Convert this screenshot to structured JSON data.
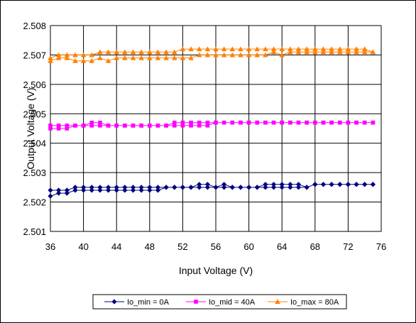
{
  "chart_data": {
    "type": "line",
    "title": "",
    "xlabel": "Input Voltage (V)",
    "ylabel": "Output Voltage (V)",
    "xlim": [
      36,
      76
    ],
    "ylim": [
      2.501,
      2.508
    ],
    "xticks": [
      "36",
      "40",
      "44",
      "48",
      "52",
      "56",
      "60",
      "64",
      "68",
      "72",
      "76"
    ],
    "yticks": [
      "2.501",
      "2.502",
      "2.503",
      "2.504",
      "2.505",
      "2.506",
      "2.507",
      "2.508"
    ],
    "grid": "vertical and horizontal major gridlines",
    "legend": "bottom",
    "series": [
      {
        "name": "Io_min = 0A",
        "color": "#000080",
        "marker": "diamond",
        "up_x": [
          36,
          37,
          38,
          39,
          40,
          41,
          42,
          43,
          44,
          45,
          46,
          47,
          48,
          49,
          50,
          51,
          52,
          53,
          54,
          55,
          56,
          57,
          58,
          59,
          60,
          61,
          62,
          63,
          64,
          65,
          66,
          67,
          68,
          69,
          70,
          71,
          72,
          73,
          74,
          75
        ],
        "up_y": [
          2.5024,
          2.5024,
          2.5024,
          2.5025,
          2.5025,
          2.5025,
          2.5025,
          2.5025,
          2.5025,
          2.5025,
          2.5025,
          2.5025,
          2.5025,
          2.5025,
          2.5025,
          2.5025,
          2.5025,
          2.5025,
          2.5026,
          2.5026,
          2.5025,
          2.5026,
          2.5025,
          2.5025,
          2.5025,
          2.5025,
          2.5026,
          2.5026,
          2.5026,
          2.5026,
          2.5026,
          2.5025,
          2.5026,
          2.5026,
          2.5026,
          2.5026,
          2.5026,
          2.5026,
          2.5026,
          2.5026
        ],
        "down_x": [
          75,
          74,
          73,
          72,
          71,
          70,
          69,
          68,
          67,
          66,
          65,
          64,
          63,
          62,
          61,
          60,
          59,
          58,
          57,
          56,
          55,
          54,
          53,
          52,
          51,
          50,
          49,
          48,
          47,
          46,
          45,
          44,
          43,
          42,
          41,
          40,
          39,
          38,
          37,
          36
        ],
        "down_y": [
          2.5026,
          2.5026,
          2.5026,
          2.5026,
          2.5026,
          2.5026,
          2.5026,
          2.5026,
          2.5025,
          2.5025,
          2.5025,
          2.5025,
          2.5025,
          2.5025,
          2.5025,
          2.5025,
          2.5025,
          2.5025,
          2.5025,
          2.5025,
          2.5025,
          2.5025,
          2.5025,
          2.5025,
          2.5025,
          2.5025,
          2.5024,
          2.5024,
          2.5024,
          2.5024,
          2.5024,
          2.5024,
          2.5024,
          2.5024,
          2.5024,
          2.5024,
          2.5024,
          2.5023,
          2.5023,
          2.5022
        ]
      },
      {
        "name": "Io_mid = 40A",
        "color": "#FF00FF",
        "marker": "square",
        "up_x": [
          36,
          37,
          38,
          39,
          40,
          41,
          42,
          43,
          44,
          45,
          46,
          47,
          48,
          49,
          50,
          51,
          52,
          53,
          54,
          55,
          56,
          57,
          58,
          59,
          60,
          61,
          62,
          63,
          64,
          65,
          66,
          67,
          68,
          69,
          70,
          71,
          72,
          73,
          74,
          75
        ],
        "up_y": [
          2.5046,
          2.5046,
          2.5046,
          2.5046,
          2.5046,
          2.5047,
          2.5047,
          2.5046,
          2.5046,
          2.5046,
          2.5046,
          2.5046,
          2.5046,
          2.5046,
          2.5046,
          2.5047,
          2.5047,
          2.5047,
          2.5047,
          2.5047,
          2.5047,
          2.5047,
          2.5047,
          2.5047,
          2.5047,
          2.5047,
          2.5047,
          2.5047,
          2.5047,
          2.5047,
          2.5047,
          2.5047,
          2.5047,
          2.5047,
          2.5047,
          2.5047,
          2.5047,
          2.5047,
          2.5047,
          2.5047
        ],
        "down_x": [
          75,
          74,
          73,
          72,
          71,
          70,
          69,
          68,
          67,
          66,
          65,
          64,
          63,
          62,
          61,
          60,
          59,
          58,
          57,
          56,
          55,
          54,
          53,
          52,
          51,
          50,
          49,
          48,
          47,
          46,
          45,
          44,
          43,
          42,
          41,
          40,
          39,
          38,
          37,
          36
        ],
        "down_y": [
          2.5047,
          2.5047,
          2.5047,
          2.5047,
          2.5047,
          2.5047,
          2.5047,
          2.5047,
          2.5047,
          2.5047,
          2.5047,
          2.5047,
          2.5047,
          2.5047,
          2.5047,
          2.5047,
          2.5047,
          2.5047,
          2.5047,
          2.5047,
          2.5046,
          2.5046,
          2.5046,
          2.5046,
          2.5046,
          2.5046,
          2.5046,
          2.5046,
          2.5046,
          2.5046,
          2.5046,
          2.5046,
          2.5046,
          2.5046,
          2.5046,
          2.5046,
          2.5046,
          2.5045,
          2.5045,
          2.5045
        ]
      },
      {
        "name": "Io_max = 80A",
        "color": "#FF8000",
        "marker": "triangle",
        "up_x": [
          36,
          37,
          38,
          39,
          40,
          41,
          42,
          43,
          44,
          45,
          46,
          47,
          48,
          49,
          50,
          51,
          52,
          53,
          54,
          55,
          56,
          57,
          58,
          59,
          60,
          61,
          62,
          63,
          64,
          65,
          66,
          67,
          68,
          69,
          70,
          71,
          72,
          73,
          74,
          75
        ],
        "up_y": [
          2.5069,
          2.507,
          2.507,
          2.507,
          2.507,
          2.507,
          2.5071,
          2.5071,
          2.5071,
          2.5071,
          2.5071,
          2.5071,
          2.5071,
          2.5071,
          2.5071,
          2.5071,
          2.5072,
          2.5072,
          2.5072,
          2.5072,
          2.5072,
          2.5072,
          2.5072,
          2.5072,
          2.5072,
          2.5072,
          2.5072,
          2.5072,
          2.5072,
          2.5072,
          2.5072,
          2.5072,
          2.5072,
          2.5072,
          2.5072,
          2.5072,
          2.5072,
          2.5072,
          2.5072,
          2.5071
        ],
        "down_x": [
          75,
          74,
          73,
          72,
          71,
          70,
          69,
          68,
          67,
          66,
          65,
          64,
          63,
          62,
          61,
          60,
          59,
          58,
          57,
          56,
          55,
          54,
          53,
          52,
          51,
          50,
          49,
          48,
          47,
          46,
          45,
          44,
          43,
          42,
          41,
          40,
          39,
          38,
          37,
          36
        ],
        "down_y": [
          2.5071,
          2.5071,
          2.5071,
          2.5071,
          2.5071,
          2.5071,
          2.5071,
          2.5071,
          2.5071,
          2.5071,
          2.5071,
          2.507,
          2.5071,
          2.507,
          2.507,
          2.507,
          2.507,
          2.507,
          2.507,
          2.507,
          2.507,
          2.507,
          2.5069,
          2.5069,
          2.5069,
          2.5069,
          2.5069,
          2.5069,
          2.5069,
          2.5069,
          2.5069,
          2.5069,
          2.5068,
          2.5069,
          2.5068,
          2.5068,
          2.5068,
          2.5069,
          2.5069,
          2.5068
        ]
      }
    ]
  }
}
